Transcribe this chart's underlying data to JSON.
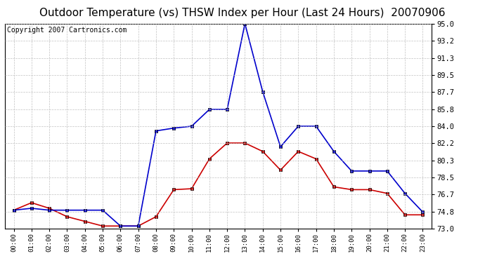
{
  "title": "Outdoor Temperature (vs) THSW Index per Hour (Last 24 Hours)  20070906",
  "copyright": "Copyright 2007 Cartronics.com",
  "hours": [
    "00:00",
    "01:00",
    "02:00",
    "03:00",
    "04:00",
    "05:00",
    "06:00",
    "07:00",
    "08:00",
    "09:00",
    "10:00",
    "11:00",
    "12:00",
    "13:00",
    "14:00",
    "15:00",
    "16:00",
    "17:00",
    "18:00",
    "19:00",
    "20:00",
    "21:00",
    "22:00",
    "23:00"
  ],
  "temp": [
    75.0,
    75.8,
    75.2,
    74.3,
    73.8,
    73.3,
    73.3,
    73.3,
    74.3,
    77.2,
    77.3,
    80.5,
    82.2,
    82.2,
    81.3,
    79.3,
    81.3,
    80.5,
    77.5,
    77.2,
    77.2,
    76.8,
    74.5,
    74.5
  ],
  "thsw": [
    75.0,
    75.2,
    75.0,
    75.0,
    75.0,
    75.0,
    73.3,
    73.3,
    83.5,
    83.8,
    84.0,
    85.8,
    85.8,
    95.0,
    87.7,
    81.8,
    84.0,
    84.0,
    81.3,
    79.2,
    79.2,
    79.2,
    76.8,
    74.8
  ],
  "temp_color": "#cc0000",
  "thsw_color": "#0000cc",
  "ylim_min": 73.0,
  "ylim_max": 95.0,
  "yticks": [
    73.0,
    74.8,
    76.7,
    78.5,
    80.3,
    82.2,
    84.0,
    85.8,
    87.7,
    89.5,
    91.3,
    93.2,
    95.0
  ],
  "bg_color": "#ffffff",
  "grid_color": "#bbbbbb",
  "title_fontsize": 11,
  "copyright_fontsize": 7,
  "marker": "s",
  "markersize": 3,
  "linewidth": 1.2
}
